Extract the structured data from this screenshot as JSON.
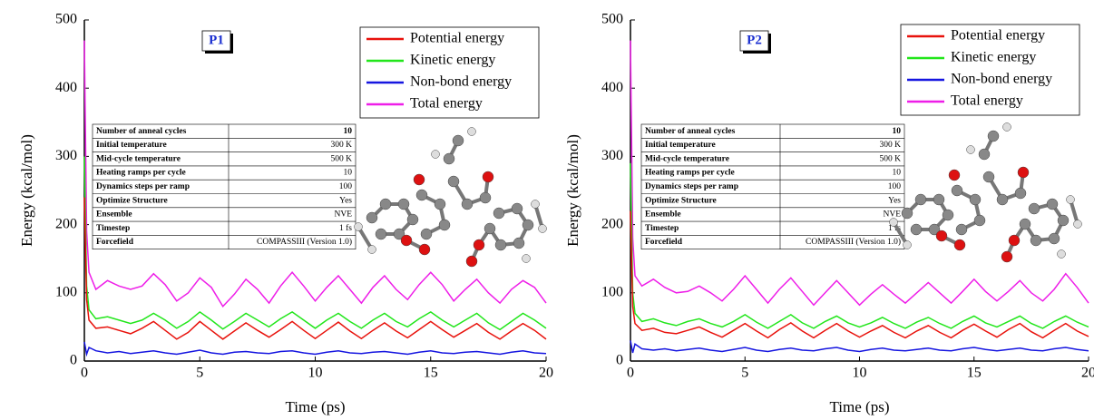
{
  "chart_data": [
    {
      "type": "line",
      "label": "P1",
      "xlabel": "Time (ps)",
      "ylabel": "Energy (kcal/mol)",
      "xlim": [
        0,
        20
      ],
      "ylim": [
        0,
        500
      ],
      "xticks": [
        0,
        5,
        10,
        15,
        20
      ],
      "yticks": [
        0,
        100,
        200,
        300,
        400,
        500
      ],
      "legend": "upper right",
      "x": [
        0,
        0.1,
        0.2,
        0.5,
        1,
        1.5,
        2,
        2.5,
        3,
        3.5,
        4,
        4.5,
        5,
        5.5,
        6,
        6.5,
        7,
        7.5,
        8,
        8.5,
        9,
        9.5,
        10,
        10.5,
        11,
        11.5,
        12,
        12.5,
        13,
        13.5,
        14,
        14.5,
        15,
        15.5,
        16,
        16.5,
        17,
        17.5,
        18,
        18.5,
        19,
        19.5,
        20
      ],
      "series": [
        {
          "name": "Potential energy",
          "color": "#e8120c",
          "values": [
            240,
            90,
            60,
            48,
            50,
            45,
            40,
            48,
            58,
            45,
            32,
            42,
            58,
            45,
            32,
            44,
            56,
            45,
            35,
            46,
            58,
            45,
            33,
            45,
            57,
            44,
            33,
            45,
            56,
            44,
            34,
            46,
            58,
            46,
            35,
            45,
            55,
            42,
            32,
            44,
            55,
            45,
            32
          ]
        },
        {
          "name": "Kinetic energy",
          "color": "#22e61b",
          "values": [
            300,
            110,
            75,
            62,
            65,
            60,
            55,
            60,
            70,
            60,
            48,
            58,
            72,
            60,
            47,
            58,
            70,
            60,
            50,
            62,
            72,
            60,
            48,
            60,
            70,
            58,
            48,
            60,
            70,
            58,
            50,
            62,
            72,
            60,
            50,
            60,
            70,
            56,
            46,
            58,
            70,
            60,
            48
          ]
        },
        {
          "name": "Non-bond energy",
          "color": "#1616e0",
          "values": [
            28,
            10,
            20,
            15,
            12,
            14,
            11,
            13,
            15,
            12,
            10,
            13,
            16,
            12,
            10,
            13,
            14,
            12,
            11,
            14,
            15,
            12,
            10,
            13,
            15,
            12,
            11,
            13,
            14,
            12,
            10,
            13,
            15,
            12,
            11,
            13,
            14,
            12,
            10,
            13,
            15,
            12,
            11
          ]
        },
        {
          "name": "Total energy",
          "color": "#ee1ee8",
          "values": [
            470,
            190,
            130,
            105,
            118,
            110,
            105,
            110,
            128,
            112,
            88,
            100,
            122,
            108,
            80,
            98,
            120,
            105,
            85,
            110,
            130,
            110,
            88,
            108,
            125,
            105,
            85,
            108,
            125,
            105,
            90,
            112,
            130,
            112,
            88,
            105,
            120,
            100,
            85,
            105,
            118,
            108,
            85
          ]
        }
      ],
      "table": [
        [
          "Number of anneal cycles",
          "10"
        ],
        [
          "Initial temperature",
          "300 K"
        ],
        [
          "Mid-cycle temperature",
          "500 K"
        ],
        [
          "Heating ramps per cycle",
          "10"
        ],
        [
          "Dynamics steps per ramp",
          "100"
        ],
        [
          "Optimize Structure",
          "Yes"
        ],
        [
          "Ensemble",
          "NVE"
        ],
        [
          "Timestep",
          "1 fs"
        ],
        [
          "Forcefield",
          "COMPASSIII (Version 1.0)"
        ]
      ]
    },
    {
      "type": "line",
      "label": "P2",
      "xlabel": "Time (ps)",
      "ylabel": "Energy (kcal/mol)",
      "xlim": [
        0,
        20
      ],
      "ylim": [
        0,
        500
      ],
      "xticks": [
        0,
        5,
        10,
        15,
        20
      ],
      "yticks": [
        0,
        100,
        200,
        300,
        400,
        500
      ],
      "legend": "upper right",
      "x": [
        0,
        0.1,
        0.2,
        0.5,
        1,
        1.5,
        2,
        2.5,
        3,
        3.5,
        4,
        4.5,
        5,
        5.5,
        6,
        6.5,
        7,
        7.5,
        8,
        8.5,
        9,
        9.5,
        10,
        10.5,
        11,
        11.5,
        12,
        12.5,
        13,
        13.5,
        14,
        14.5,
        15,
        15.5,
        16,
        16.5,
        17,
        17.5,
        18,
        18.5,
        19,
        19.5,
        20
      ],
      "series": [
        {
          "name": "Potential energy",
          "color": "#e8120c",
          "values": [
            220,
            80,
            55,
            45,
            48,
            42,
            40,
            45,
            50,
            42,
            35,
            45,
            55,
            44,
            34,
            46,
            56,
            44,
            34,
            45,
            55,
            44,
            35,
            44,
            52,
            42,
            34,
            44,
            52,
            42,
            34,
            45,
            54,
            44,
            35,
            46,
            55,
            43,
            34,
            45,
            55,
            44,
            36
          ]
        },
        {
          "name": "Kinetic energy",
          "color": "#22e61b",
          "values": [
            290,
            100,
            70,
            58,
            62,
            56,
            52,
            58,
            62,
            55,
            50,
            58,
            68,
            57,
            48,
            58,
            68,
            56,
            48,
            58,
            66,
            56,
            50,
            56,
            64,
            55,
            48,
            57,
            64,
            55,
            48,
            58,
            66,
            56,
            50,
            58,
            66,
            55,
            48,
            58,
            66,
            57,
            50
          ]
        },
        {
          "name": "Non-bond energy",
          "color": "#1616e0",
          "values": [
            30,
            12,
            25,
            18,
            16,
            18,
            15,
            17,
            19,
            16,
            14,
            17,
            20,
            16,
            14,
            17,
            19,
            16,
            15,
            18,
            20,
            16,
            14,
            17,
            19,
            16,
            15,
            17,
            19,
            16,
            15,
            18,
            20,
            17,
            15,
            17,
            19,
            16,
            15,
            18,
            20,
            17,
            15
          ]
        },
        {
          "name": "Total energy",
          "color": "#ee1ee8",
          "values": [
            470,
            180,
            125,
            110,
            120,
            108,
            100,
            102,
            110,
            100,
            88,
            105,
            125,
            105,
            85,
            105,
            122,
            102,
            82,
            100,
            118,
            100,
            82,
            98,
            112,
            98,
            85,
            100,
            115,
            100,
            85,
            102,
            120,
            102,
            88,
            102,
            118,
            100,
            88,
            105,
            128,
            108,
            85
          ]
        }
      ],
      "table": [
        [
          "Number of anneal cycles",
          "10"
        ],
        [
          "Initial temperature",
          "300 K"
        ],
        [
          "Mid-cycle temperature",
          "500 K"
        ],
        [
          "Heating ramps per cycle",
          "10"
        ],
        [
          "Dynamics steps per ramp",
          "100"
        ],
        [
          "Optimize Structure",
          "Yes"
        ],
        [
          "Ensemble",
          "NVE"
        ],
        [
          "Timestep",
          "1 fs"
        ],
        [
          "Forcefield",
          "COMPASSIII (Version 1.0)"
        ]
      ]
    }
  ]
}
